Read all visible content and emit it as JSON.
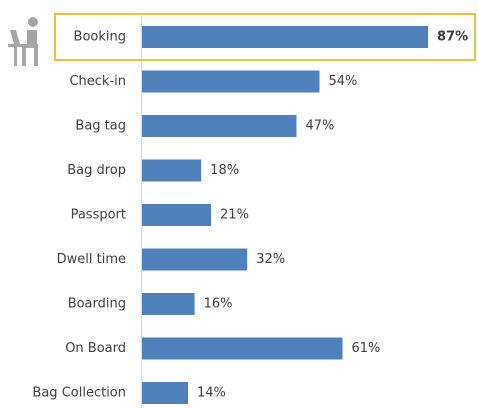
{
  "chart_data": {
    "type": "bar",
    "orientation": "horizontal",
    "categories": [
      "Booking",
      "Check-in",
      "Bag tag",
      "Bag drop",
      "Passport",
      "Dwell time",
      "Boarding",
      "On Board",
      "Bag Collection"
    ],
    "values": [
      87,
      54,
      47,
      18,
      21,
      32,
      16,
      61,
      14
    ],
    "value_labels": [
      "87%",
      "54%",
      "47%",
      "18%",
      "21%",
      "32%",
      "16%",
      "61%",
      "14%"
    ],
    "color": "#4f81bd",
    "highlight_index": 0,
    "highlight_color": "#f2c232"
  }
}
